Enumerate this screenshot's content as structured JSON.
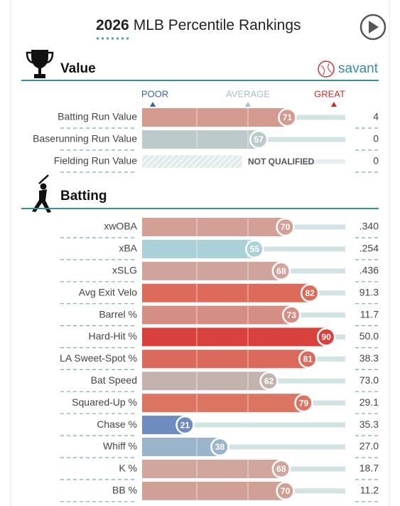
{
  "header": {
    "year": "2026",
    "title": "MLB Percentile Rankings"
  },
  "value": {
    "heading": "Value",
    "brand": "savant",
    "legend": {
      "poor": "POOR",
      "average": "AVERAGE",
      "great": "GREAT"
    },
    "rows": [
      {
        "label": "Batting Run Value",
        "percentile": 71,
        "value": "4",
        "color": "#d49a90"
      },
      {
        "label": "Baserunning Run Value",
        "percentile": 57,
        "value": "0",
        "color": "#bccacc"
      },
      {
        "label": "Fielding Run Value",
        "percentile": null,
        "status": "NOT QUALIFIED",
        "value": "0",
        "color": "#e6eef0"
      }
    ]
  },
  "batting": {
    "heading": "Batting",
    "rows": [
      {
        "label": "xwOBA",
        "percentile": 70,
        "value": ".340",
        "color": "#d4a096"
      },
      {
        "label": "xBA",
        "percentile": 55,
        "value": ".254",
        "color": "#aad0d8"
      },
      {
        "label": "xSLG",
        "percentile": 68,
        "value": ".436",
        "color": "#cfa49c"
      },
      {
        "label": "Avg Exit Velo",
        "percentile": 82,
        "value": "91.3",
        "color": "#dd6b5c"
      },
      {
        "label": "Barrel %",
        "percentile": 73,
        "value": "11.7",
        "color": "#d48e83"
      },
      {
        "label": "Hard-Hit %",
        "percentile": 90,
        "value": "50.0",
        "color": "#d9413c"
      },
      {
        "label": "LA Sweet-Spot %",
        "percentile": 81,
        "value": "38.3",
        "color": "#d96a5c"
      },
      {
        "label": "Bat Speed",
        "percentile": 62,
        "value": "73.0",
        "color": "#c4b2ae"
      },
      {
        "label": "Squared-Up %",
        "percentile": 79,
        "value": "29.1",
        "color": "#db7562"
      },
      {
        "label": "Chase %",
        "percentile": 21,
        "value": "35.3",
        "color": "#6e8cc0"
      },
      {
        "label": "Whiff %",
        "percentile": 38,
        "value": "27.0",
        "color": "#9ab4cb"
      },
      {
        "label": "K %",
        "percentile": 68,
        "value": "18.7",
        "color": "#cfa59c"
      },
      {
        "label": "BB %",
        "percentile": 70,
        "value": "11.2",
        "color": "#d1a095"
      }
    ]
  }
}
